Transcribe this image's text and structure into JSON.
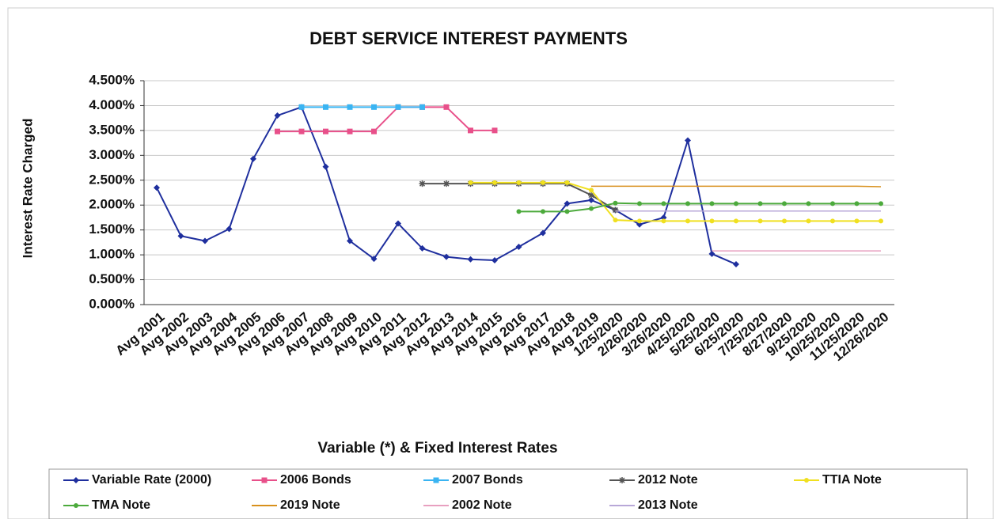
{
  "chart_data": {
    "type": "line",
    "title": "DEBT SERVICE INTEREST PAYMENTS",
    "y_label": "Interest Rate Charged",
    "x_label": "Variable (*) & Fixed Interest Rates",
    "categories": [
      "Avg 2001",
      "Avg 2002",
      "Avg 2003",
      "Avg 2004",
      "Avg 2005",
      "Avg 2006",
      "Avg 2007",
      "Avg 2008",
      "Avg 2009",
      "Avg 2010",
      "Avg 2011",
      "Avg 2012",
      "Avg 2013",
      "Avg 2014",
      "Avg 2015",
      "Avg 2016",
      "Avg 2017",
      "Avg 2018",
      "Avg 2019",
      "1/25/2020",
      "2/26/2020",
      "3/26/2020",
      "4/25/2020",
      "5/25/2020",
      "6/25/2020",
      "7/25/2020",
      "8/27/2020",
      "9/25/2020",
      "10/25/2020",
      "11/25/2020",
      "12/26/2020"
    ],
    "ylim": [
      0,
      4.5
    ],
    "yticks": [
      {
        "value": 0,
        "label": "0.000%"
      },
      {
        "value": 0.5,
        "label": "0.500%"
      },
      {
        "value": 1,
        "label": "1.000%"
      },
      {
        "value": 1.5,
        "label": "1.500%"
      },
      {
        "value": 2,
        "label": "2.000%"
      },
      {
        "value": 2.5,
        "label": "2.500%"
      },
      {
        "value": 3,
        "label": "3.000%"
      },
      {
        "value": 3.5,
        "label": "3.500%"
      },
      {
        "value": 4,
        "label": "4.000%"
      },
      {
        "value": 4.5,
        "label": "4.500%"
      }
    ],
    "grid": true,
    "legend": "bottom",
    "series": [
      {
        "name": "Variable Rate (2000)",
        "color": "#1f2f9e",
        "marker": "diamond",
        "values": [
          2.35,
          1.38,
          1.28,
          1.52,
          2.93,
          3.8,
          3.97,
          2.77,
          1.28,
          0.92,
          1.63,
          1.13,
          0.96,
          0.91,
          0.89,
          1.16,
          1.44,
          2.03,
          2.1,
          1.9,
          1.61,
          1.75,
          3.3,
          1.02,
          0.81,
          null,
          null,
          null,
          null,
          null,
          null
        ]
      },
      {
        "name": "2006 Bonds",
        "color": "#e8508a",
        "marker": "square",
        "values": [
          null,
          null,
          null,
          null,
          null,
          3.48,
          3.48,
          3.48,
          3.48,
          3.48,
          3.97,
          3.97,
          3.97,
          3.5,
          3.5,
          null,
          null,
          null,
          null,
          null,
          null,
          null,
          null,
          null,
          null,
          null,
          null,
          null,
          null,
          null,
          null
        ]
      },
      {
        "name": "2007 Bonds",
        "color": "#3ab4f2",
        "marker": "square",
        "values": [
          null,
          null,
          null,
          null,
          null,
          null,
          3.97,
          3.97,
          3.97,
          3.97,
          3.97,
          3.97,
          null,
          null,
          null,
          null,
          null,
          null,
          null,
          null,
          null,
          null,
          null,
          null,
          null,
          null,
          null,
          null,
          null,
          null,
          null
        ]
      },
      {
        "name": "2012 Note",
        "color": "#555555",
        "marker": "star",
        "values": [
          null,
          null,
          null,
          null,
          null,
          null,
          null,
          null,
          null,
          null,
          null,
          2.43,
          2.43,
          2.43,
          2.43,
          2.43,
          2.43,
          2.43,
          2.2,
          1.9,
          null,
          null,
          null,
          null,
          null,
          null,
          null,
          null,
          null,
          null,
          null
        ]
      },
      {
        "name": "TTIA Note",
        "color": "#f0e020",
        "marker": "dot",
        "values": [
          null,
          null,
          null,
          null,
          null,
          null,
          null,
          null,
          null,
          null,
          null,
          null,
          null,
          2.45,
          2.45,
          2.45,
          2.45,
          2.45,
          2.3,
          1.7,
          1.68,
          1.68,
          1.68,
          1.68,
          1.68,
          1.68,
          1.68,
          1.68,
          1.68,
          1.68,
          1.68
        ]
      },
      {
        "name": "TMA Note",
        "color": "#4caa3c",
        "marker": "dot",
        "values": [
          null,
          null,
          null,
          null,
          null,
          null,
          null,
          null,
          null,
          null,
          null,
          null,
          null,
          null,
          null,
          1.87,
          1.87,
          1.87,
          1.93,
          2.04,
          2.03,
          2.03,
          2.03,
          2.03,
          2.03,
          2.03,
          2.03,
          2.03,
          2.03,
          2.03,
          2.03
        ]
      },
      {
        "name": "2019 Note",
        "color": "#d8901c",
        "marker": "none",
        "values": [
          null,
          null,
          null,
          null,
          null,
          null,
          null,
          null,
          null,
          null,
          null,
          null,
          null,
          null,
          null,
          null,
          null,
          null,
          2.38,
          2.38,
          2.38,
          2.38,
          2.38,
          2.38,
          2.38,
          2.38,
          2.38,
          2.38,
          2.38,
          2.38,
          2.37
        ]
      },
      {
        "name": "2002 Note",
        "color": "#e8a0c0",
        "marker": "none",
        "values": [
          null,
          null,
          null,
          null,
          null,
          null,
          null,
          null,
          null,
          null,
          null,
          null,
          null,
          null,
          null,
          null,
          null,
          null,
          null,
          null,
          null,
          null,
          null,
          1.08,
          1.08,
          1.08,
          1.08,
          1.08,
          1.08,
          1.08,
          1.08
        ]
      },
      {
        "name": "2013 Note",
        "color": "#b8a8d8",
        "marker": "none",
        "values": [
          null,
          null,
          null,
          null,
          null,
          null,
          null,
          null,
          null,
          null,
          null,
          null,
          null,
          null,
          null,
          null,
          null,
          null,
          null,
          1.88,
          1.88,
          1.88,
          1.88,
          1.88,
          1.88,
          1.88,
          1.88,
          1.88,
          1.88,
          1.88,
          1.88
        ]
      }
    ]
  }
}
